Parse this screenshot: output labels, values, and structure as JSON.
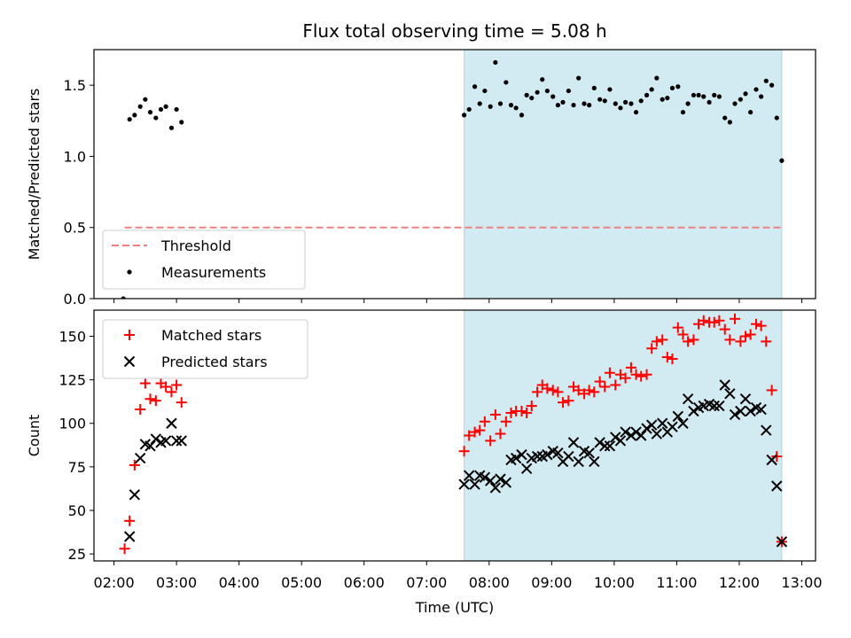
{
  "chart_data": {
    "title": "Flux total observing time = 5.08 h",
    "xlabel": "Time (UTC)",
    "x_ticks": [
      "02:00",
      "03:00",
      "04:00",
      "05:00",
      "06:00",
      "07:00",
      "08:00",
      "09:00",
      "10:00",
      "11:00",
      "12:00",
      "13:00"
    ],
    "x_range_hours": [
      1.68,
      13.22
    ],
    "highlight_span_hours": [
      7.6,
      12.68
    ],
    "highlight_color": "#add8e6",
    "panels": [
      {
        "type": "scatter",
        "ylabel": "Matched/Predicted stars",
        "ylim": [
          0,
          1.75
        ],
        "y_ticks": [
          "0.0",
          "0.5",
          "1.0",
          "1.5"
        ],
        "y_tick_values": [
          0,
          0.5,
          1.0,
          1.5
        ],
        "legend_position": "lower-left",
        "threshold": {
          "name": "Threshold",
          "value": 0.5,
          "x_start": 2.17,
          "x_end": 12.68,
          "color": "#f08080",
          "style": "dashed"
        },
        "series": [
          {
            "name": "Measurements",
            "marker": "dot",
            "color": "#000000",
            "points": [
              [
                2.15,
                0.0
              ],
              [
                2.25,
                1.26
              ],
              [
                2.33,
                1.29
              ],
              [
                2.42,
                1.35
              ],
              [
                2.5,
                1.4
              ],
              [
                2.58,
                1.31
              ],
              [
                2.67,
                1.27
              ],
              [
                2.75,
                1.33
              ],
              [
                2.83,
                1.35
              ],
              [
                2.92,
                1.2
              ],
              [
                3.0,
                1.33
              ],
              [
                3.08,
                1.24
              ],
              [
                7.6,
                1.29
              ],
              [
                7.68,
                1.33
              ],
              [
                7.77,
                1.49
              ],
              [
                7.85,
                1.37
              ],
              [
                7.93,
                1.46
              ],
              [
                8.02,
                1.35
              ],
              [
                8.1,
                1.66
              ],
              [
                8.18,
                1.37
              ],
              [
                8.27,
                1.52
              ],
              [
                8.35,
                1.36
              ],
              [
                8.43,
                1.34
              ],
              [
                8.52,
                1.29
              ],
              [
                8.6,
                1.43
              ],
              [
                8.68,
                1.41
              ],
              [
                8.77,
                1.45
              ],
              [
                8.85,
                1.54
              ],
              [
                8.93,
                1.46
              ],
              [
                9.02,
                1.42
              ],
              [
                9.1,
                1.36
              ],
              [
                9.18,
                1.38
              ],
              [
                9.27,
                1.46
              ],
              [
                9.35,
                1.36
              ],
              [
                9.43,
                1.55
              ],
              [
                9.52,
                1.37
              ],
              [
                9.6,
                1.36
              ],
              [
                9.68,
                1.48
              ],
              [
                9.77,
                1.4
              ],
              [
                9.85,
                1.39
              ],
              [
                9.93,
                1.47
              ],
              [
                10.02,
                1.37
              ],
              [
                10.1,
                1.34
              ],
              [
                10.18,
                1.38
              ],
              [
                10.27,
                1.37
              ],
              [
                10.35,
                1.31
              ],
              [
                10.43,
                1.39
              ],
              [
                10.52,
                1.43
              ],
              [
                10.6,
                1.47
              ],
              [
                10.68,
                1.55
              ],
              [
                10.77,
                1.4
              ],
              [
                10.85,
                1.41
              ],
              [
                10.93,
                1.48
              ],
              [
                11.02,
                1.49
              ],
              [
                11.1,
                1.31
              ],
              [
                11.18,
                1.37
              ],
              [
                11.27,
                1.43
              ],
              [
                11.35,
                1.43
              ],
              [
                11.43,
                1.42
              ],
              [
                11.52,
                1.38
              ],
              [
                11.6,
                1.43
              ],
              [
                11.68,
                1.42
              ],
              [
                11.77,
                1.27
              ],
              [
                11.85,
                1.24
              ],
              [
                11.93,
                1.37
              ],
              [
                12.02,
                1.4
              ],
              [
                12.1,
                1.44
              ],
              [
                12.18,
                1.31
              ],
              [
                12.27,
                1.47
              ],
              [
                12.35,
                1.42
              ],
              [
                12.43,
                1.53
              ],
              [
                12.52,
                1.5
              ],
              [
                12.6,
                1.27
              ],
              [
                12.68,
                0.97
              ]
            ]
          }
        ]
      },
      {
        "type": "scatter",
        "ylabel": "Count",
        "ylim": [
          21,
          165
        ],
        "y_ticks": [
          "25",
          "50",
          "75",
          "100",
          "125",
          "150"
        ],
        "y_tick_values": [
          25,
          50,
          75,
          100,
          125,
          150
        ],
        "legend_position": "upper-left",
        "series": [
          {
            "name": "Matched stars",
            "marker": "plus",
            "color": "#ff0000",
            "points": [
              [
                2.17,
                28
              ],
              [
                2.25,
                44
              ],
              [
                2.33,
                76
              ],
              [
                2.42,
                108
              ],
              [
                2.5,
                123
              ],
              [
                2.58,
                114
              ],
              [
                2.67,
                113
              ],
              [
                2.75,
                123
              ],
              [
                2.83,
                121
              ],
              [
                2.92,
                118
              ],
              [
                3.0,
                122
              ],
              [
                3.08,
                112
              ],
              [
                7.6,
                84
              ],
              [
                7.68,
                93
              ],
              [
                7.77,
                95
              ],
              [
                7.85,
                96
              ],
              [
                7.93,
                101
              ],
              [
                8.02,
                90
              ],
              [
                8.1,
                105
              ],
              [
                8.18,
                94
              ],
              [
                8.27,
                101
              ],
              [
                8.35,
                106
              ],
              [
                8.43,
                107
              ],
              [
                8.52,
                107
              ],
              [
                8.6,
                106
              ],
              [
                8.68,
                110
              ],
              [
                8.77,
                118
              ],
              [
                8.85,
                122
              ],
              [
                8.93,
                120
              ],
              [
                9.02,
                119
              ],
              [
                9.1,
                118
              ],
              [
                9.18,
                112
              ],
              [
                9.27,
                113
              ],
              [
                9.35,
                121
              ],
              [
                9.43,
                119
              ],
              [
                9.52,
                117
              ],
              [
                9.6,
                119
              ],
              [
                9.68,
                118
              ],
              [
                9.77,
                124
              ],
              [
                9.85,
                121
              ],
              [
                9.93,
                129
              ],
              [
                10.02,
                122
              ],
              [
                10.1,
                128
              ],
              [
                10.18,
                126
              ],
              [
                10.27,
                132
              ],
              [
                10.35,
                128
              ],
              [
                10.43,
                127
              ],
              [
                10.52,
                128
              ],
              [
                10.6,
                143
              ],
              [
                10.68,
                147
              ],
              [
                10.77,
                148
              ],
              [
                10.85,
                138
              ],
              [
                10.93,
                137
              ],
              [
                11.02,
                155
              ],
              [
                11.1,
                151
              ],
              [
                11.18,
                147
              ],
              [
                11.27,
                148
              ],
              [
                11.35,
                157
              ],
              [
                11.43,
                159
              ],
              [
                11.52,
                158
              ],
              [
                11.6,
                158
              ],
              [
                11.68,
                159
              ],
              [
                11.77,
                154
              ],
              [
                11.85,
                148
              ],
              [
                11.93,
                160
              ],
              [
                12.02,
                147
              ],
              [
                12.1,
                150
              ],
              [
                12.18,
                151
              ],
              [
                12.27,
                157
              ],
              [
                12.35,
                156
              ],
              [
                12.43,
                147
              ],
              [
                12.52,
                119
              ],
              [
                12.6,
                81
              ],
              [
                12.68,
                32
              ]
            ]
          },
          {
            "name": "Predicted stars",
            "marker": "x",
            "color": "#000000",
            "points": [
              [
                2.25,
                35
              ],
              [
                2.33,
                59
              ],
              [
                2.42,
                80
              ],
              [
                2.5,
                88
              ],
              [
                2.58,
                87
              ],
              [
                2.67,
                91
              ],
              [
                2.75,
                89
              ],
              [
                2.83,
                90
              ],
              [
                2.92,
                100
              ],
              [
                3.0,
                90
              ],
              [
                3.08,
                90
              ],
              [
                7.6,
                65
              ],
              [
                7.68,
                70
              ],
              [
                7.77,
                65
              ],
              [
                7.85,
                70
              ],
              [
                7.93,
                69
              ],
              [
                8.02,
                67
              ],
              [
                8.1,
                63
              ],
              [
                8.18,
                68
              ],
              [
                8.27,
                66
              ],
              [
                8.35,
                79
              ],
              [
                8.43,
                80
              ],
              [
                8.52,
                82
              ],
              [
                8.6,
                74
              ],
              [
                8.68,
                80
              ],
              [
                8.77,
                81
              ],
              [
                8.85,
                81
              ],
              [
                8.93,
                82
              ],
              [
                9.02,
                84
              ],
              [
                9.1,
                83
              ],
              [
                9.18,
                78
              ],
              [
                9.27,
                81
              ],
              [
                9.35,
                89
              ],
              [
                9.43,
                78
              ],
              [
                9.52,
                84
              ],
              [
                9.6,
                83
              ],
              [
                9.68,
                78
              ],
              [
                9.77,
                89
              ],
              [
                9.85,
                87
              ],
              [
                9.93,
                87
              ],
              [
                10.02,
                92
              ],
              [
                10.1,
                90
              ],
              [
                10.18,
                95
              ],
              [
                10.27,
                93
              ],
              [
                10.35,
                95
              ],
              [
                10.43,
                93
              ],
              [
                10.52,
                97
              ],
              [
                10.6,
                99
              ],
              [
                10.68,
                94
              ],
              [
                10.77,
                100
              ],
              [
                10.85,
                95
              ],
              [
                10.93,
                98
              ],
              [
                11.02,
                104
              ],
              [
                11.1,
                100
              ],
              [
                11.18,
                114
              ],
              [
                11.27,
                107
              ],
              [
                11.35,
                109
              ],
              [
                11.43,
                110
              ],
              [
                11.52,
                111
              ],
              [
                11.6,
                110
              ],
              [
                11.68,
                110
              ],
              [
                11.77,
                122
              ],
              [
                11.85,
                117
              ],
              [
                11.93,
                105
              ],
              [
                12.02,
                107
              ],
              [
                12.1,
                114
              ],
              [
                12.18,
                107
              ],
              [
                12.27,
                109
              ],
              [
                12.35,
                108
              ],
              [
                12.43,
                96
              ],
              [
                12.52,
                79
              ],
              [
                12.6,
                64
              ],
              [
                12.68,
                32
              ]
            ]
          }
        ]
      }
    ]
  }
}
